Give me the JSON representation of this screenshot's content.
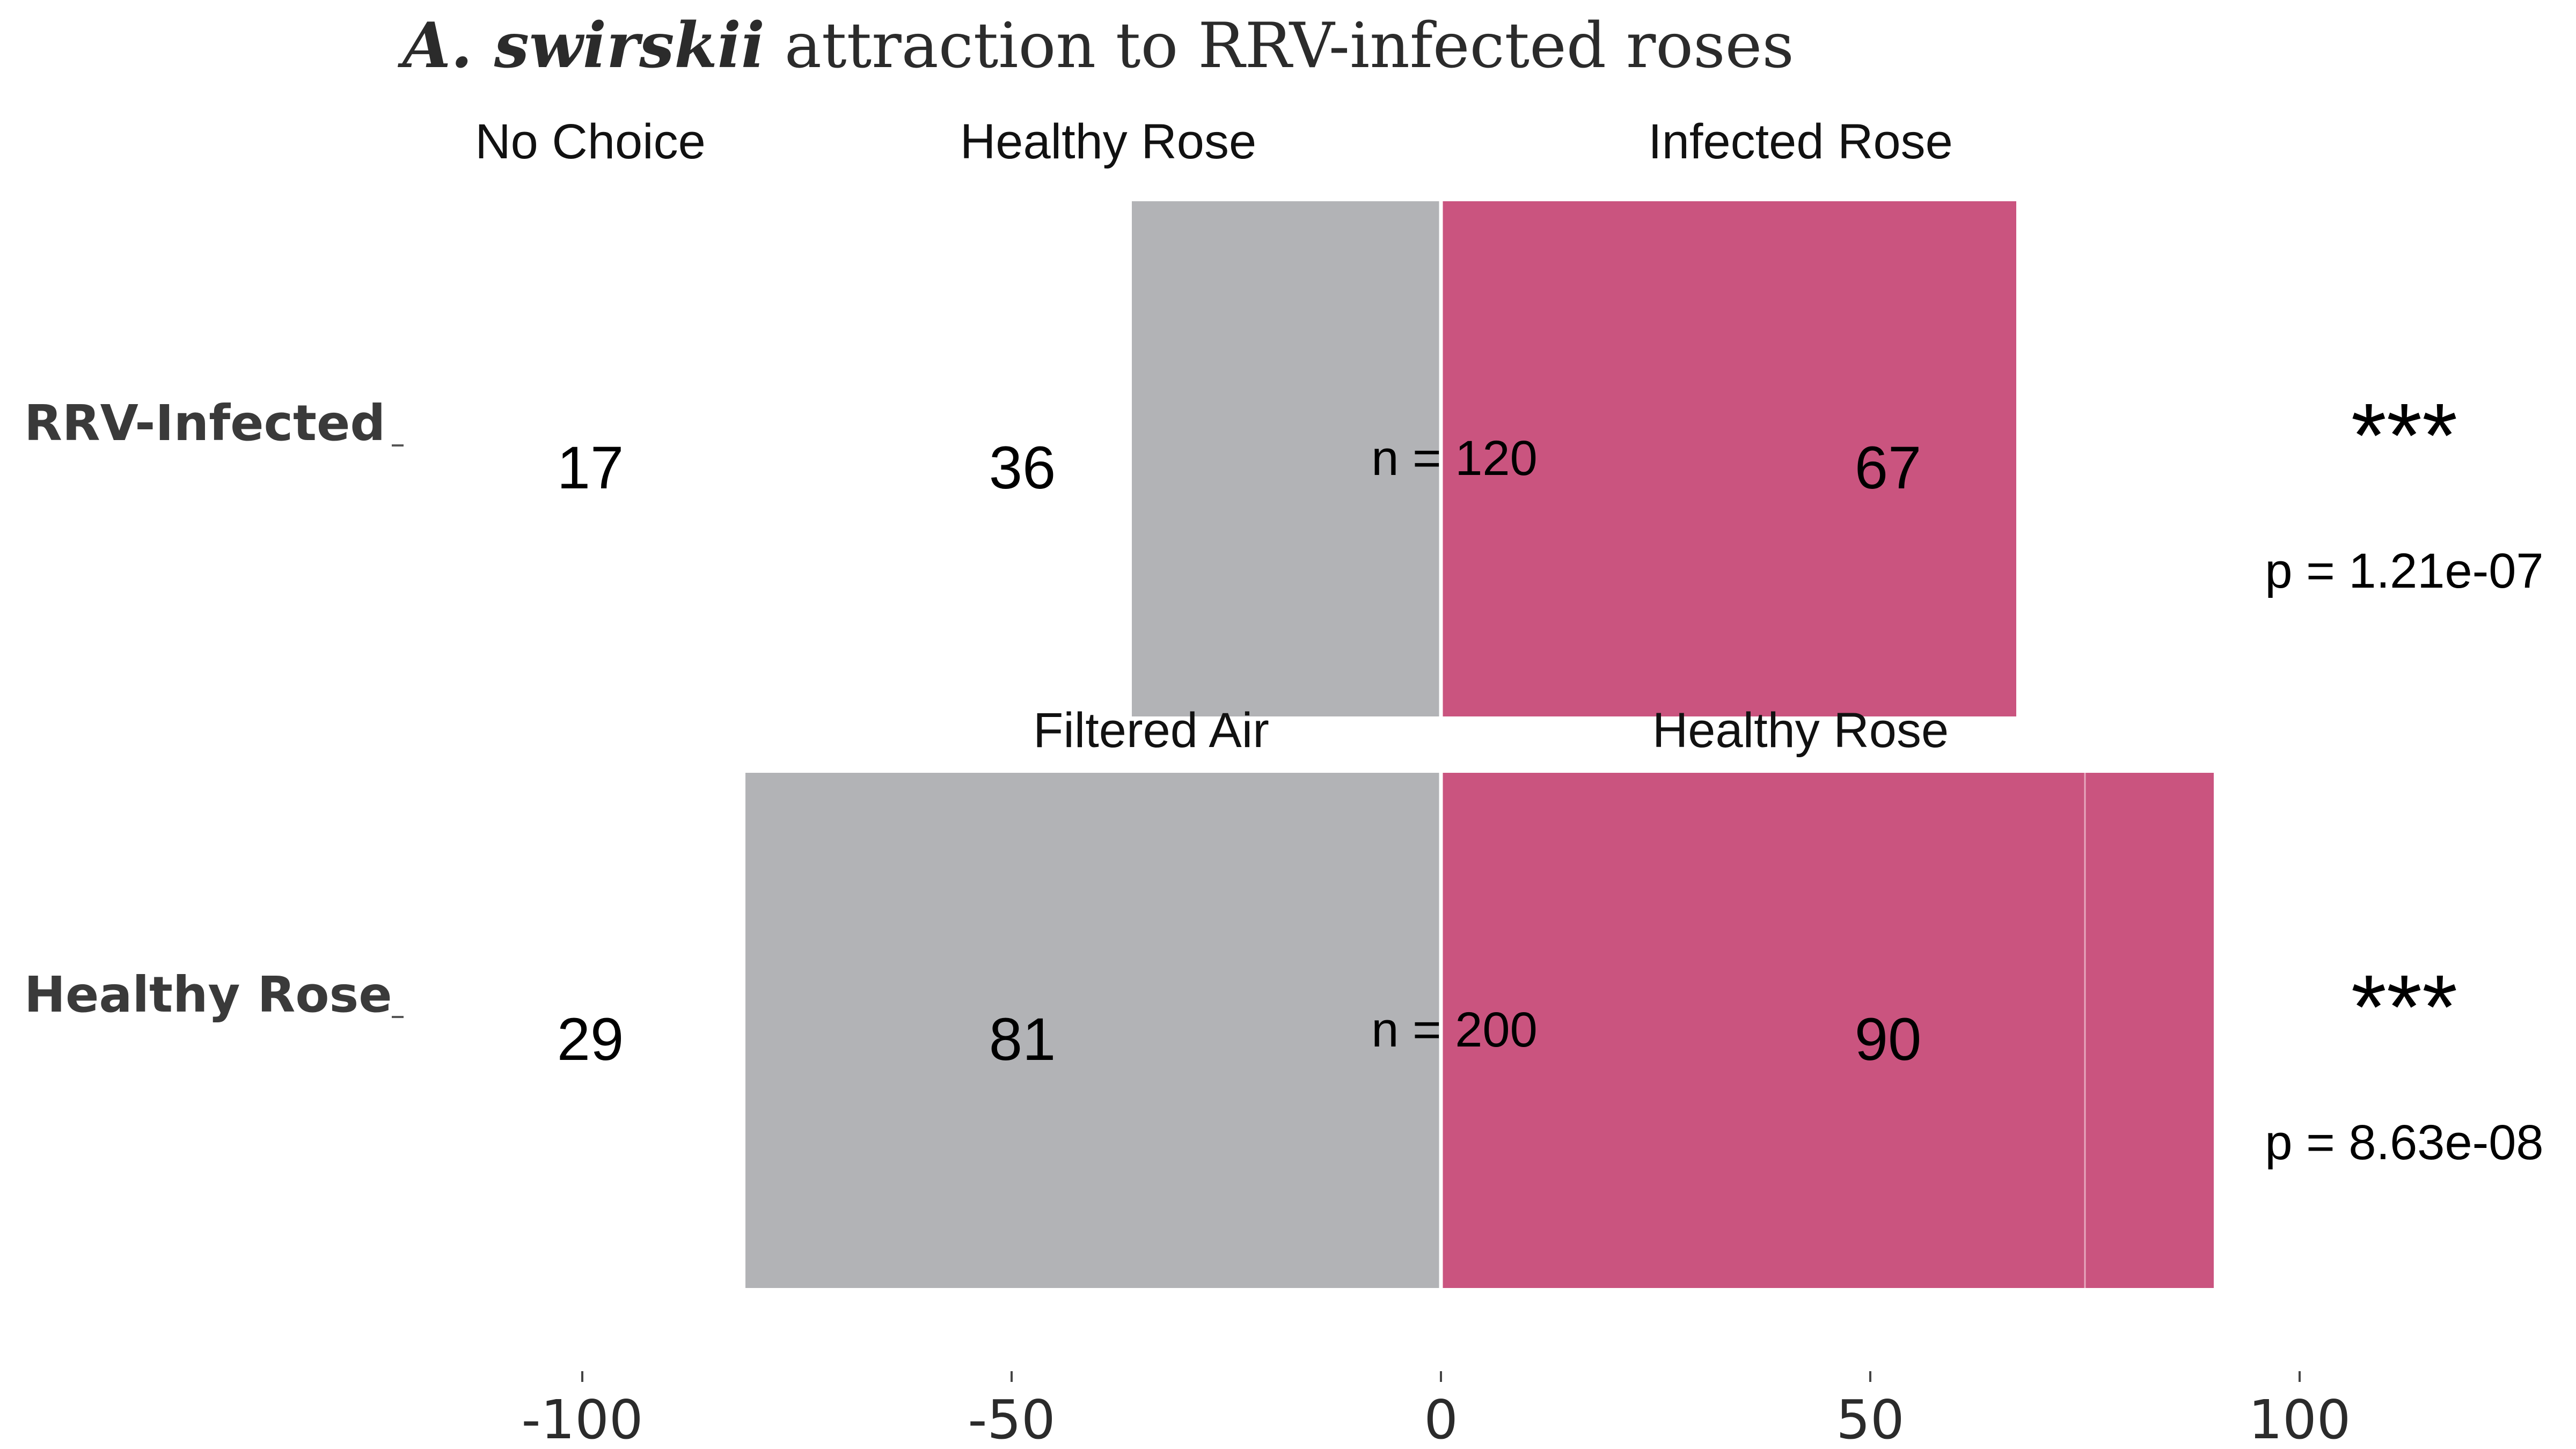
{
  "chart_data": {
    "type": "bar",
    "title_italic": "A. swirskii",
    "title_rest": " attraction to RRV-infected roses",
    "xlim": [
      -100,
      100
    ],
    "x_ticks": [
      "-100",
      "-50",
      "0",
      "50",
      "100"
    ],
    "grid": false,
    "colors": {
      "left": "#b2b3b6",
      "right": "#ca547f",
      "tick": "#444444"
    },
    "rows": [
      {
        "label": "RRV-Infected",
        "no_choice_header": "No Choice",
        "left_header": "Healthy Rose",
        "right_header": "Infected Rose",
        "no_choice": 17,
        "left": 36,
        "right": 67,
        "n_text": "n = 120",
        "no_choice_text": "17",
        "left_text": "36",
        "right_text": "67",
        "stars": "***",
        "p_text": "p = 1.21e-07"
      },
      {
        "label": "Healthy Rose",
        "no_choice_header": "",
        "left_header": "Filtered Air",
        "right_header": "Healthy Rose",
        "no_choice": 29,
        "left": 81,
        "right": 90,
        "right_split": 75,
        "n_text": "n = 200",
        "no_choice_text": "29",
        "left_text": "81",
        "right_text": "90",
        "stars": "***",
        "p_text": "p = 8.63e-08"
      }
    ]
  }
}
